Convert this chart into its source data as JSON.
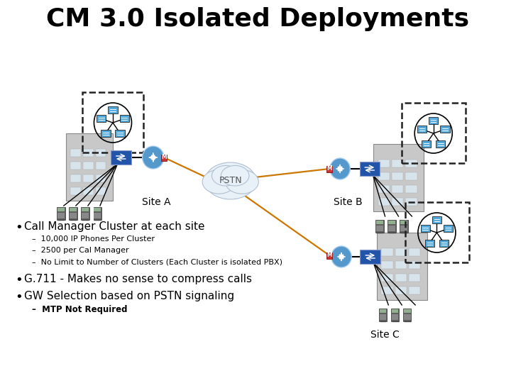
{
  "title": "CM 3.0 Isolated Deployments",
  "title_fontsize": 26,
  "background_color": "#ffffff",
  "bullet_points": [
    "Call Manager Cluster at each site",
    "G.711 - Makes no sense to compress calls",
    "GW Selection based on PSTN signaling"
  ],
  "sub_bullets_1": [
    "10,000 IP Phones Per Cluster",
    "2500 per Cal Manager",
    "No Limit to Number of Clusters (Each Cluster is isolated PBX)"
  ],
  "sub_bullet_last": "MTP Not Required",
  "site_labels": [
    "Site A",
    "Site B",
    "Site C"
  ],
  "pstn_label": "PSTN",
  "orange_color": "#cc7700",
  "cloud_color": "#e8f0f8",
  "cloud_edge_color": "#b0c0d0",
  "dashed_box_color": "#222222",
  "building_color": "#c8c8c8",
  "building_window_color": "#d8e4ec",
  "router_color": "#5599cc",
  "switch_color": "#2255aa",
  "server_color": "#44aadd",
  "node_color": "#55aadd",
  "phone_color": "#555555",
  "m_box_color": "#cc3333"
}
